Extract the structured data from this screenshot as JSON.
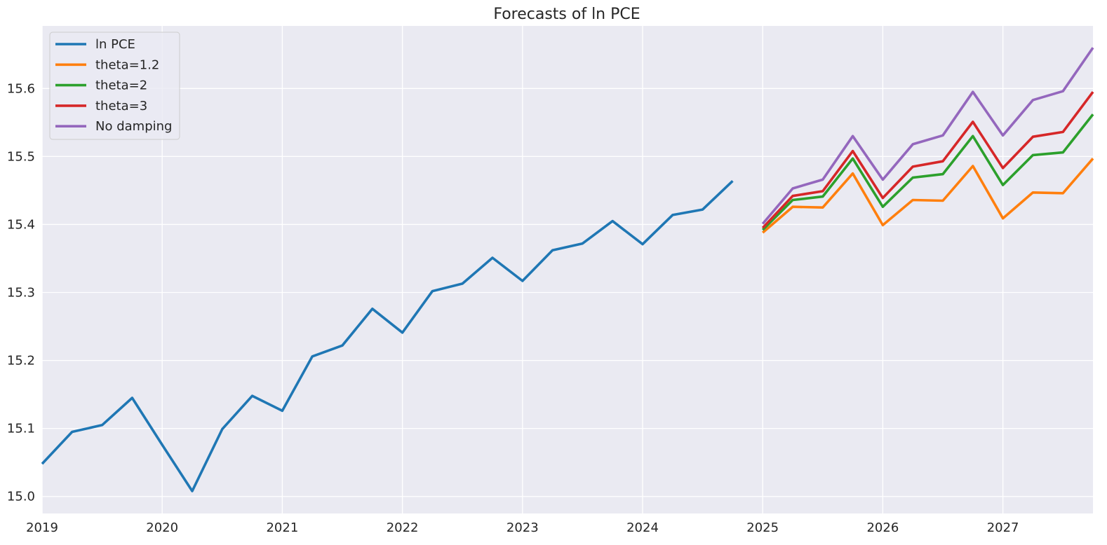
{
  "chart_data": {
    "type": "line",
    "title": "Forecasts of ln PCE",
    "xlabel": "",
    "ylabel": "",
    "xlim": [
      2019.0,
      2027.75
    ],
    "ylim": [
      14.975,
      15.692
    ],
    "x_ticks": [
      2019,
      2020,
      2021,
      2022,
      2023,
      2024,
      2025,
      2026,
      2027
    ],
    "y_ticks": [
      15.0,
      15.1,
      15.2,
      15.3,
      15.4,
      15.5,
      15.6
    ],
    "y_tick_labels": [
      "15.0",
      "15.1",
      "15.2",
      "15.3",
      "15.4",
      "15.5",
      "15.6"
    ],
    "grid": true,
    "legend_position": "top-left",
    "series": [
      {
        "name": "ln PCE",
        "color": "#1f77b4",
        "x": [
          "2019Q1",
          "2019Q2",
          "2019Q3",
          "2019Q4",
          "2020Q1",
          "2020Q2",
          "2020Q3",
          "2020Q4",
          "2021Q1",
          "2021Q2",
          "2021Q3",
          "2021Q4",
          "2022Q1",
          "2022Q2",
          "2022Q3",
          "2022Q4",
          "2023Q1",
          "2023Q2",
          "2023Q3",
          "2023Q4",
          "2024Q1",
          "2024Q2",
          "2024Q3",
          "2024Q4"
        ],
        "values": [
          15.048,
          15.095,
          15.105,
          15.145,
          15.076,
          15.008,
          15.099,
          15.148,
          15.126,
          15.206,
          15.222,
          15.276,
          15.241,
          15.302,
          15.313,
          15.351,
          15.317,
          15.362,
          15.372,
          15.405,
          15.371,
          15.414,
          15.422,
          15.464
        ]
      },
      {
        "name": "theta=1.2",
        "color": "#ff7f0e",
        "x": [
          "2025Q1",
          "2025Q2",
          "2025Q3",
          "2025Q4",
          "2026Q1",
          "2026Q2",
          "2026Q3",
          "2026Q4",
          "2027Q1",
          "2027Q2",
          "2027Q3",
          "2027Q4"
        ],
        "values": [
          15.388,
          15.426,
          15.425,
          15.475,
          15.399,
          15.436,
          15.435,
          15.486,
          15.409,
          15.447,
          15.446,
          15.497
        ]
      },
      {
        "name": "theta=2",
        "color": "#2ca02c",
        "x": [
          "2025Q1",
          "2025Q2",
          "2025Q3",
          "2025Q4",
          "2026Q1",
          "2026Q2",
          "2026Q3",
          "2026Q4",
          "2027Q1",
          "2027Q2",
          "2027Q3",
          "2027Q4"
        ],
        "values": [
          15.392,
          15.436,
          15.441,
          15.497,
          15.426,
          15.469,
          15.474,
          15.53,
          15.458,
          15.502,
          15.506,
          15.562
        ]
      },
      {
        "name": "theta=3",
        "color": "#d62728",
        "x": [
          "2025Q1",
          "2025Q2",
          "2025Q3",
          "2025Q4",
          "2026Q1",
          "2026Q2",
          "2026Q3",
          "2026Q4",
          "2027Q1",
          "2027Q2",
          "2027Q3",
          "2027Q4"
        ],
        "values": [
          15.395,
          15.442,
          15.449,
          15.508,
          15.439,
          15.485,
          15.493,
          15.551,
          15.483,
          15.529,
          15.536,
          15.595
        ]
      },
      {
        "name": "No damping",
        "color": "#9467bd",
        "x": [
          "2025Q1",
          "2025Q2",
          "2025Q3",
          "2025Q4",
          "2026Q1",
          "2026Q2",
          "2026Q3",
          "2026Q4",
          "2027Q1",
          "2027Q2",
          "2027Q3",
          "2027Q4"
        ],
        "values": [
          15.401,
          15.453,
          15.466,
          15.53,
          15.466,
          15.518,
          15.531,
          15.595,
          15.531,
          15.583,
          15.596,
          15.66
        ]
      }
    ]
  }
}
